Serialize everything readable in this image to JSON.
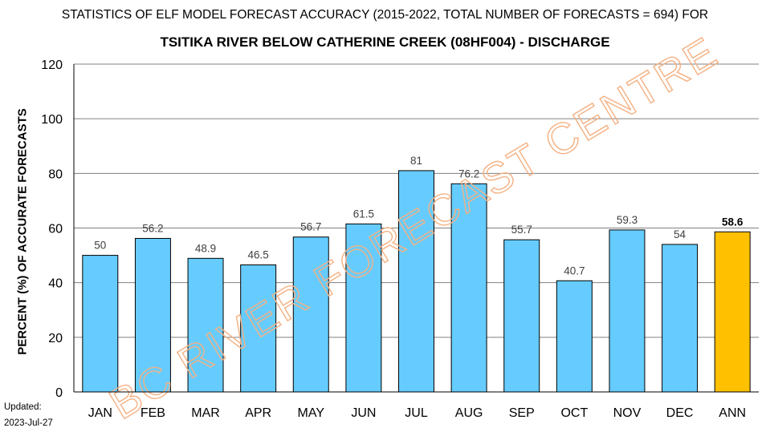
{
  "chart_data": {
    "type": "bar",
    "title": "STATISTICS OF ELF MODEL FORECAST ACCURACY (2015-2022, TOTAL NUMBER OF FORECASTS = 694) FOR",
    "subtitle": "TSITIKA RIVER BELOW CATHERINE CREEK (08HF004) - DISCHARGE",
    "ylabel": "PERCENT (%) OF ACCURATE FORECASTS",
    "xlabel": "",
    "categories": [
      "JAN",
      "FEB",
      "MAR",
      "APR",
      "MAY",
      "JUN",
      "JUL",
      "AUG",
      "SEP",
      "OCT",
      "NOV",
      "DEC",
      "ANN"
    ],
    "values": [
      50,
      56.2,
      48.9,
      46.5,
      56.7,
      61.5,
      81,
      76.2,
      55.7,
      40.7,
      59.3,
      54,
      58.6
    ],
    "value_labels": [
      "50",
      "56.2",
      "48.9",
      "46.5",
      "56.7",
      "61.5",
      "81",
      "76.2",
      "55.7",
      "40.7",
      "59.3",
      "54",
      "58.6"
    ],
    "highlight_category": "ANN",
    "ylim": [
      0,
      120
    ],
    "yticks": [
      0,
      20,
      40,
      60,
      80,
      100,
      120
    ],
    "grid": true,
    "legend": "none",
    "colors": {
      "bar": "#66CCFF",
      "highlight_bar": "#FFC000",
      "bar_stroke": "#000000",
      "grid": "#808080",
      "watermark": "#F4B183"
    },
    "watermark": "BC RIVER FORECAST CENTRE"
  },
  "footer": {
    "updated_label": "Updated:",
    "updated_date": "2023-Jul-27"
  }
}
